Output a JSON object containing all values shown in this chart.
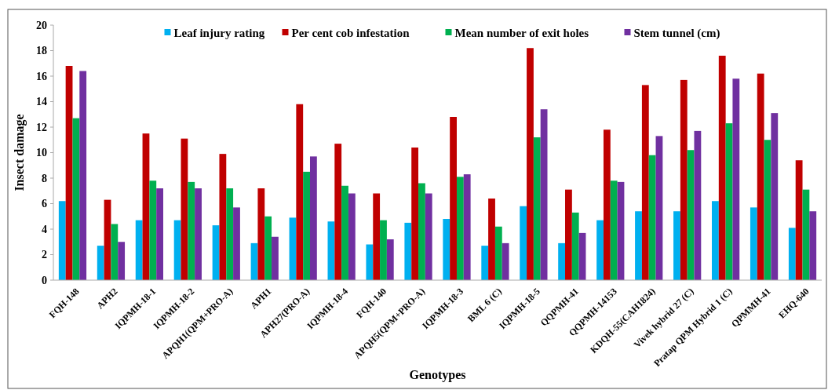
{
  "chart_data": {
    "type": "bar",
    "xlabel": "Genotypes",
    "ylabel": "Insect damage",
    "categories": [
      "FQH-148",
      "APH2",
      "IQPMH-18-1",
      "IQPMH-18-2",
      "APQH1(QPM+PRO-A)",
      "APH1",
      "APH27(PRO-A)",
      "IQPMH-18-4",
      "FQH-140",
      "APQH5(QPM+PRO-A)",
      "IQPMH-18-3",
      "BML 6 (C)",
      "IQPMH-18-5",
      "QQPMH-41",
      "QQPMH-14153",
      "KDQH-55(CAH1824)",
      "Vivek hybrid 27 (C)",
      "Pratap QPM Hybrid 1 (C)",
      "QPMMH-41",
      "EHQ-640"
    ],
    "series": [
      {
        "name": "Leaf injury rating",
        "color": "#00b0f0",
        "values": [
          6.2,
          2.7,
          4.7,
          4.7,
          4.3,
          2.9,
          4.9,
          4.6,
          2.8,
          4.5,
          4.8,
          2.7,
          5.8,
          2.9,
          4.7,
          5.4,
          5.4,
          6.2,
          5.7,
          4.1
        ]
      },
      {
        "name": "Per cent cob infestation",
        "color": "#c00000",
        "values": [
          16.8,
          6.3,
          11.5,
          11.1,
          9.9,
          7.2,
          13.8,
          10.7,
          6.8,
          10.4,
          12.8,
          6.4,
          18.2,
          7.1,
          11.8,
          15.3,
          15.7,
          17.6,
          16.2,
          9.4
        ]
      },
      {
        "name": "Mean number of exit holes",
        "color": "#00b050",
        "values": [
          12.7,
          4.4,
          7.8,
          7.7,
          7.2,
          5.0,
          8.5,
          7.4,
          4.7,
          7.6,
          8.1,
          4.2,
          11.2,
          5.3,
          7.8,
          9.8,
          10.2,
          12.3,
          11.0,
          7.1
        ]
      },
      {
        "name": "Stem tunnel (cm)",
        "color": "#7030a0",
        "values": [
          16.4,
          3.0,
          7.2,
          7.2,
          5.7,
          3.4,
          9.7,
          6.8,
          3.2,
          6.8,
          8.3,
          2.9,
          13.4,
          3.7,
          7.7,
          11.3,
          11.7,
          15.8,
          13.1,
          5.4
        ]
      }
    ],
    "ylim": [
      0,
      20
    ],
    "yticks": [
      0,
      2,
      4,
      6,
      8,
      10,
      12,
      14,
      16,
      18,
      20
    ],
    "legend": "top",
    "grid": false
  }
}
